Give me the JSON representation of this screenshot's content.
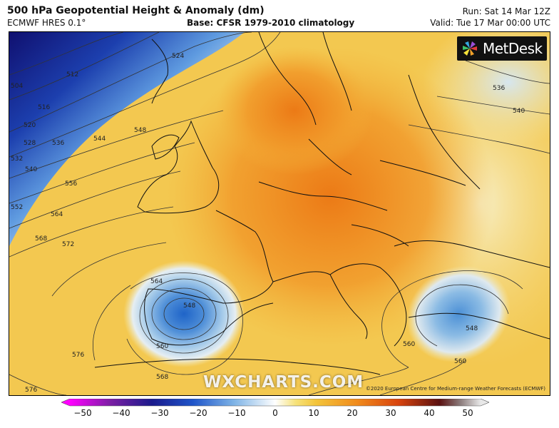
{
  "header": {
    "title": "500 hPa Geopotential Height & Anomaly (dm)",
    "model": "ECMWF HRES 0.1°",
    "base": "Base: CFSR 1979-2010 climatology",
    "run": "Run: Sat 14 Mar 12Z",
    "valid": "Valid: Tue 17 Mar 00:00 UTC"
  },
  "brand": {
    "name": "MetDesk",
    "icon": "metdesk-logo-icon"
  },
  "watermark": "WXCHARTS.COM",
  "copyright": "©2020 European Centre for Medium-range Weather Forecasts (ECMWF)",
  "contours": {
    "labels": [
      "504",
      "512",
      "516",
      "520",
      "524",
      "528",
      "532",
      "536",
      "540",
      "544",
      "548",
      "552",
      "556",
      "560",
      "564",
      "568",
      "572",
      "576",
      "536",
      "540",
      "548",
      "548",
      "560",
      "564",
      "568",
      "560",
      "576"
    ]
  },
  "colorbar": {
    "ticks": [
      "−50",
      "−40",
      "−30",
      "−20",
      "−10",
      "0",
      "10",
      "20",
      "30",
      "40",
      "50"
    ],
    "min": -50,
    "max": 50,
    "stops": [
      {
        "v": -50,
        "c": "#ff00ff"
      },
      {
        "v": -40,
        "c": "#7a1fa3"
      },
      {
        "v": -30,
        "c": "#1a1a8c"
      },
      {
        "v": -20,
        "c": "#1f55c9"
      },
      {
        "v": -10,
        "c": "#7fb4e6"
      },
      {
        "v": 0,
        "c": "#ffffff"
      },
      {
        "v": 5,
        "c": "#f6e27a"
      },
      {
        "v": 10,
        "c": "#f3c43a"
      },
      {
        "v": 20,
        "c": "#f08a1c"
      },
      {
        "v": 30,
        "c": "#d8440e"
      },
      {
        "v": 40,
        "c": "#5a1010"
      },
      {
        "v": 45,
        "c": "#8a7a7a"
      },
      {
        "v": 50,
        "c": "#e8e8e8"
      }
    ]
  },
  "colors": {
    "warm": "#f5c54a",
    "hot": "#f08a1c",
    "cold": "#2a62c8",
    "deep_cold": "#1a1a8c",
    "neutral": "#ffffff",
    "contour": "#333333",
    "coast": "#111111"
  }
}
